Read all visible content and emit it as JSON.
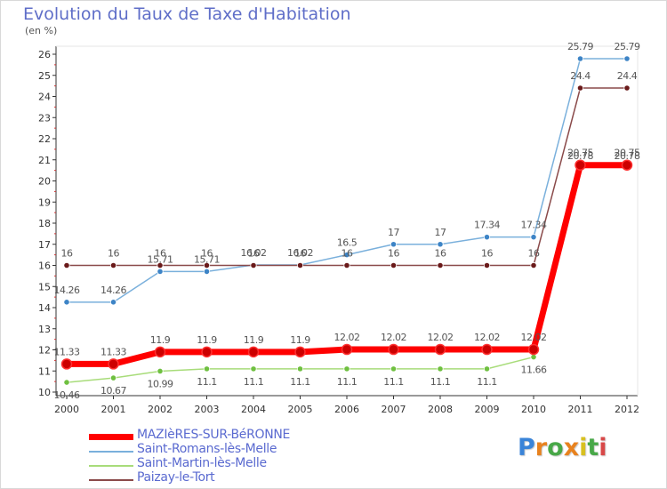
{
  "title": "Evolution du Taux de Taxe d'Habitation",
  "subtitle": "(en %)",
  "logo": {
    "text": "Proxiti",
    "letters": [
      "P",
      "r",
      "o",
      "x",
      "i",
      "t",
      "i"
    ],
    "colors": [
      "#3a84d8",
      "#e8821e",
      "#48a848",
      "#e8821e",
      "#d8c020",
      "#48a848",
      "#d84848"
    ]
  },
  "chart_data": {
    "type": "line",
    "title": "Evolution du Taux de Taxe d'Habitation",
    "subtitle": "(en %)",
    "x": [
      "2000",
      "2001",
      "2002",
      "2003",
      "2004",
      "2005",
      "2006",
      "2007",
      "2008",
      "2009",
      "2010",
      "2011",
      "2012"
    ],
    "ylim": [
      10,
      26
    ],
    "yticks": [
      "10",
      "11",
      "12",
      "13",
      "14",
      "15",
      "16",
      "17",
      "18",
      "19",
      "20",
      "21",
      "22",
      "23",
      "24",
      "25",
      "26"
    ],
    "grid": false,
    "legend_position": "bottom-left",
    "series": [
      {
        "name": "MAZIèRES-SUR-BéRONNE",
        "values": [
          11.33,
          11.33,
          11.9,
          11.9,
          11.9,
          11.9,
          12.02,
          12.02,
          12.02,
          12.02,
          12.02,
          20.75,
          20.75
        ],
        "labels": [
          "11.33",
          "11.33",
          "11.9",
          "11.9",
          "11.9",
          "11.9",
          "12.02",
          "12.02",
          "12.02",
          "12.02",
          "12.02",
          "20.75",
          "20.75"
        ],
        "color": "#ff0000",
        "marker_color": "#cc0000",
        "width": 7
      },
      {
        "name": "Saint-Romans-lès-Melle",
        "values": [
          14.26,
          14.26,
          15.71,
          15.71,
          16.02,
          16.02,
          16.5,
          17,
          17,
          17.34,
          17.34,
          25.79,
          25.79
        ],
        "labels": [
          "14.26",
          "14.26",
          "15.71",
          "15.71",
          "16.02",
          "16.02",
          "16.5",
          "17",
          "17",
          "17.34",
          "17.34",
          "25.79",
          "25.79"
        ],
        "color": "#7ab0dc",
        "marker_color": "#3d84c6",
        "width": 1.5
      },
      {
        "name": "Saint-Martin-lès-Melle",
        "values": [
          10.46,
          10.67,
          10.99,
          11.1,
          11.1,
          11.1,
          11.1,
          11.1,
          11.1,
          11.1,
          11.66,
          20.78,
          20.78
        ],
        "labels": [
          "10.46",
          "10.67",
          "10.99",
          "11.1",
          "11.1",
          "11.1",
          "11.1",
          "11.1",
          "11.1",
          "11.1",
          "11.66",
          "20.78",
          "20.78"
        ],
        "color": "#a8dc7a",
        "marker_color": "#6fc040",
        "width": 1.5
      },
      {
        "name": "Paizay-le-Tort",
        "values": [
          16,
          16,
          16,
          16,
          16,
          16,
          16,
          16,
          16,
          16,
          16,
          24.4,
          24.4
        ],
        "labels": [
          "16",
          "16",
          "16",
          "16",
          "16",
          "16",
          "16",
          "16",
          "16",
          "16",
          "16",
          "24.4",
          "24.4"
        ],
        "color": "#8a4a4a",
        "marker_color": "#6a1a1a",
        "width": 1.5
      }
    ]
  }
}
